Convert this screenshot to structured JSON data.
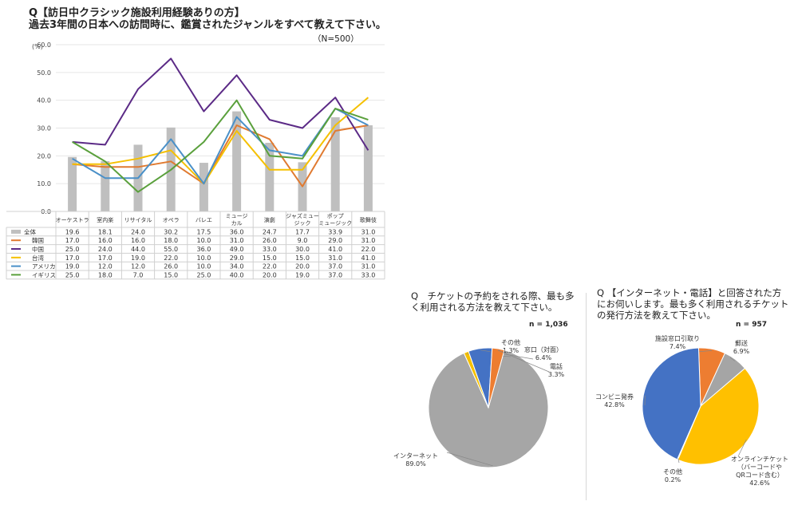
{
  "main": {
    "title_line1": "Q【訪日中クラシック施設利用経験ありの方】",
    "title_line2": "過去3年間の日本への訪問時に、鑑賞されたジャンルをすべて教えて下さい。",
    "n_note": "（N=500）"
  },
  "chart_data": [
    {
      "type": "bar",
      "unit_label": "(%)",
      "ylim": [
        0,
        60
      ],
      "yticks": [
        "0.0",
        "10.0",
        "20.0",
        "30.0",
        "40.0",
        "50.0",
        "60.0"
      ],
      "grid": true,
      "legend_placement": "data-table-left",
      "categories": [
        "オーケストラ",
        "室内楽",
        "リサイタル",
        "オペラ",
        "バレエ",
        "ミュージカル",
        "演劇",
        "ジャズミュージック",
        "ポップミュージック",
        "歌舞伎"
      ],
      "category_labels": [
        [
          "オーケストラ"
        ],
        [
          "室内楽"
        ],
        [
          "リサイタル"
        ],
        [
          "オペラ"
        ],
        [
          "バレエ"
        ],
        [
          "ミュージ",
          "カル"
        ],
        [
          "演劇"
        ],
        [
          "ジャズミュー",
          "ジック"
        ],
        [
          "ポップ",
          "ミュージック"
        ],
        [
          "歌舞伎"
        ]
      ],
      "series": [
        {
          "name": "全体",
          "kind": "bar",
          "color": "#bfbfbf",
          "values": [
            19.6,
            18.1,
            24.0,
            30.2,
            17.5,
            36.0,
            24.7,
            17.7,
            33.9,
            31.0
          ],
          "labels": [
            "19.6",
            "18.1",
            "24.0",
            "30.2",
            "17.5",
            "36.0",
            "24.7",
            "17.7",
            "33.9",
            "31.0"
          ]
        },
        {
          "name": "韓国",
          "kind": "line",
          "color": "#e07a30",
          "values": [
            17.0,
            16.0,
            16.0,
            18.0,
            10.0,
            31.0,
            26.0,
            9.0,
            29.0,
            31.0
          ],
          "labels": [
            "17.0",
            "16.0",
            "16.0",
            "18.0",
            "10.0",
            "31.0",
            "26.0",
            "9.0",
            "29.0",
            "31.0"
          ]
        },
        {
          "name": "中国",
          "kind": "line",
          "color": "#5b2a86",
          "values": [
            25.0,
            24.0,
            44.0,
            55.0,
            36.0,
            49.0,
            33.0,
            30.0,
            41.0,
            22.0
          ],
          "labels": [
            "25.0",
            "24.0",
            "44.0",
            "55.0",
            "36.0",
            "49.0",
            "33.0",
            "30.0",
            "41.0",
            "22.0"
          ]
        },
        {
          "name": "台湾",
          "kind": "line",
          "color": "#f5c000",
          "values": [
            17.0,
            17.0,
            19.0,
            22.0,
            10.0,
            29.0,
            15.0,
            15.0,
            31.0,
            41.0
          ],
          "labels": [
            "17.0",
            "17.0",
            "19.0",
            "22.0",
            "10.0",
            "29.0",
            "15.0",
            "15.0",
            "31.0",
            "41.0"
          ]
        },
        {
          "name": "アメリカ",
          "kind": "line",
          "color": "#4a90c8",
          "values": [
            19.0,
            12.0,
            12.0,
            26.0,
            10.0,
            34.0,
            22.0,
            20.0,
            37.0,
            31.0
          ],
          "labels": [
            "19.0",
            "12.0",
            "12.0",
            "26.0",
            "10.0",
            "34.0",
            "22.0",
            "20.0",
            "37.0",
            "31.0"
          ]
        },
        {
          "name": "イギリス",
          "kind": "line",
          "color": "#5aa03c",
          "values": [
            25.0,
            18.0,
            7.0,
            15.0,
            25.0,
            40.0,
            20.0,
            19.0,
            37.0,
            33.0
          ],
          "labels": [
            "25.0",
            "18.0",
            "7.0",
            "15.0",
            "25.0",
            "40.0",
            "20.0",
            "19.0",
            "37.0",
            "33.0"
          ]
        }
      ]
    },
    {
      "type": "pie",
      "question": [
        "Q　チケットの予約をされる際、最も多",
        "く利用される方法を教えて下さい。"
      ],
      "n_label": "n = 1,036",
      "slices": [
        {
          "name": "インターネット",
          "value": 89.0,
          "label": "89.0%",
          "color": "#a6a6a6"
        },
        {
          "name": "その他",
          "value": 1.3,
          "label": "1.3%",
          "color": "#f5c000"
        },
        {
          "name": "窓口（対面）",
          "value": 6.4,
          "label": "6.4%",
          "color": "#4472c4"
        },
        {
          "name": "電話",
          "value": 3.3,
          "label": "3.3%",
          "color": "#ed7d31"
        }
      ]
    },
    {
      "type": "pie",
      "question": [
        "Q 【インターネット・電話】と回答された方",
        "にお伺いします。最も多く利用されるチケット",
        "の発行方法を教えて下さい。"
      ],
      "n_label": "n = 957",
      "slices": [
        {
          "name": "施設窓口引取り",
          "value": 7.4,
          "label": "7.4%",
          "color": "#ed7d31"
        },
        {
          "name": "郵送",
          "value": 6.9,
          "label": "6.9%",
          "color": "#a5a5a5"
        },
        {
          "name": "オンラインチケット（バーコードやQRコード含む）",
          "name_lines": [
            "オンラインチケット",
            "（バーコードや",
            "QRコード含む）"
          ],
          "value": 42.6,
          "label": "42.6%",
          "color": "#ffc000"
        },
        {
          "name": "その他",
          "value": 0.2,
          "label": "0.2%",
          "color": "#5b9bd5"
        },
        {
          "name": "コンビニ発券",
          "value": 42.8,
          "label": "42.8%",
          "color": "#4472c4"
        }
      ]
    }
  ]
}
